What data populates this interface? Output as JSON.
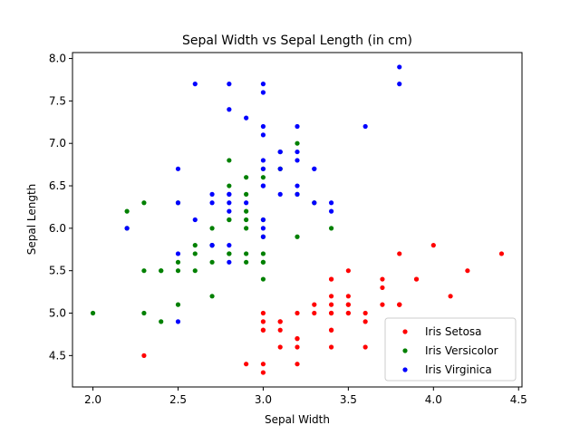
{
  "chart_data": {
    "type": "scatter",
    "title": "Sepal Width vs Sepal Length (in cm)",
    "xlabel": "Sepal Width",
    "ylabel": "Sepal Length",
    "xlim": [
      1.88,
      4.52
    ],
    "ylim": [
      4.13,
      8.07
    ],
    "xticks": [
      "2.0",
      "2.5",
      "3.0",
      "3.5",
      "4.0",
      "4.5"
    ],
    "yticks": [
      "4.5",
      "5.0",
      "5.5",
      "6.0",
      "6.5",
      "7.0",
      "7.5",
      "8.0"
    ],
    "grid": false,
    "legend_position": "lower-right",
    "series": [
      {
        "name": "Iris Setosa",
        "color": "#ff0000",
        "points": [
          [
            3.5,
            5.1
          ],
          [
            3.0,
            4.9
          ],
          [
            3.2,
            4.7
          ],
          [
            3.1,
            4.6
          ],
          [
            3.6,
            5.0
          ],
          [
            3.9,
            5.4
          ],
          [
            3.4,
            4.6
          ],
          [
            3.4,
            5.0
          ],
          [
            2.9,
            4.4
          ],
          [
            3.1,
            4.9
          ],
          [
            3.7,
            5.4
          ],
          [
            3.4,
            4.8
          ],
          [
            3.0,
            4.8
          ],
          [
            3.0,
            4.3
          ],
          [
            4.0,
            5.8
          ],
          [
            4.4,
            5.7
          ],
          [
            3.9,
            5.4
          ],
          [
            3.5,
            5.1
          ],
          [
            3.8,
            5.7
          ],
          [
            3.8,
            5.1
          ],
          [
            3.4,
            5.4
          ],
          [
            3.7,
            5.1
          ],
          [
            3.6,
            4.6
          ],
          [
            3.3,
            5.1
          ],
          [
            3.4,
            4.8
          ],
          [
            3.0,
            5.0
          ],
          [
            3.4,
            5.0
          ],
          [
            3.5,
            5.2
          ],
          [
            3.4,
            5.2
          ],
          [
            3.2,
            4.7
          ],
          [
            3.1,
            4.8
          ],
          [
            3.4,
            5.4
          ],
          [
            4.1,
            5.2
          ],
          [
            4.2,
            5.5
          ],
          [
            3.1,
            4.9
          ],
          [
            3.2,
            5.0
          ],
          [
            3.5,
            5.5
          ],
          [
            3.6,
            4.9
          ],
          [
            3.0,
            4.4
          ],
          [
            3.4,
            5.1
          ],
          [
            3.5,
            5.0
          ],
          [
            2.3,
            4.5
          ],
          [
            3.2,
            4.4
          ],
          [
            3.5,
            5.0
          ],
          [
            3.8,
            5.1
          ],
          [
            3.0,
            4.8
          ],
          [
            3.8,
            5.1
          ],
          [
            3.2,
            4.6
          ],
          [
            3.7,
            5.3
          ],
          [
            3.3,
            5.0
          ]
        ]
      },
      {
        "name": "Iris Versicolor",
        "color": "#008000",
        "points": [
          [
            3.2,
            7.0
          ],
          [
            3.2,
            6.4
          ],
          [
            3.1,
            6.9
          ],
          [
            2.3,
            5.5
          ],
          [
            2.8,
            6.5
          ],
          [
            2.8,
            5.7
          ],
          [
            3.3,
            6.3
          ],
          [
            2.4,
            4.9
          ],
          [
            2.9,
            6.6
          ],
          [
            2.7,
            5.2
          ],
          [
            2.0,
            5.0
          ],
          [
            3.0,
            5.9
          ],
          [
            2.2,
            6.0
          ],
          [
            2.9,
            6.1
          ],
          [
            2.9,
            5.6
          ],
          [
            3.1,
            6.7
          ],
          [
            3.0,
            5.6
          ],
          [
            2.7,
            5.8
          ],
          [
            2.2,
            6.2
          ],
          [
            2.5,
            5.6
          ],
          [
            3.2,
            5.9
          ],
          [
            2.8,
            6.1
          ],
          [
            2.5,
            6.3
          ],
          [
            2.8,
            6.1
          ],
          [
            2.9,
            6.4
          ],
          [
            3.0,
            6.6
          ],
          [
            2.8,
            6.8
          ],
          [
            3.0,
            6.7
          ],
          [
            2.9,
            6.0
          ],
          [
            2.6,
            5.7
          ],
          [
            2.4,
            5.5
          ],
          [
            2.4,
            5.5
          ],
          [
            2.7,
            5.8
          ],
          [
            2.7,
            6.0
          ],
          [
            3.0,
            5.4
          ],
          [
            3.4,
            6.0
          ],
          [
            3.1,
            6.7
          ],
          [
            2.3,
            6.3
          ],
          [
            3.0,
            5.6
          ],
          [
            2.5,
            5.5
          ],
          [
            2.6,
            5.5
          ],
          [
            3.0,
            6.1
          ],
          [
            2.6,
            5.8
          ],
          [
            2.3,
            5.0
          ],
          [
            2.7,
            5.6
          ],
          [
            3.0,
            5.7
          ],
          [
            2.9,
            5.7
          ],
          [
            2.9,
            6.2
          ],
          [
            2.5,
            5.1
          ],
          [
            2.8,
            5.7
          ]
        ]
      },
      {
        "name": "Iris Virginica",
        "color": "#0000ff",
        "points": [
          [
            3.3,
            6.3
          ],
          [
            2.7,
            5.8
          ],
          [
            3.0,
            7.1
          ],
          [
            2.9,
            6.3
          ],
          [
            3.0,
            6.5
          ],
          [
            3.0,
            7.6
          ],
          [
            2.5,
            4.9
          ],
          [
            2.9,
            7.3
          ],
          [
            2.5,
            6.7
          ],
          [
            3.6,
            7.2
          ],
          [
            3.2,
            6.5
          ],
          [
            2.7,
            6.4
          ],
          [
            3.0,
            6.8
          ],
          [
            2.5,
            5.7
          ],
          [
            2.8,
            5.8
          ],
          [
            3.2,
            6.4
          ],
          [
            3.0,
            6.5
          ],
          [
            3.8,
            7.7
          ],
          [
            2.6,
            7.7
          ],
          [
            2.2,
            6.0
          ],
          [
            3.2,
            6.9
          ],
          [
            2.8,
            5.6
          ],
          [
            2.8,
            7.7
          ],
          [
            2.7,
            6.3
          ],
          [
            3.3,
            6.7
          ],
          [
            3.2,
            7.2
          ],
          [
            2.8,
            6.2
          ],
          [
            3.0,
            6.1
          ],
          [
            2.8,
            6.4
          ],
          [
            3.0,
            7.2
          ],
          [
            2.8,
            7.4
          ],
          [
            3.8,
            7.9
          ],
          [
            2.8,
            6.4
          ],
          [
            2.8,
            6.3
          ],
          [
            2.6,
            6.1
          ],
          [
            3.0,
            7.7
          ],
          [
            3.4,
            6.3
          ],
          [
            3.1,
            6.4
          ],
          [
            3.0,
            6.0
          ],
          [
            3.1,
            6.9
          ],
          [
            3.1,
            6.7
          ],
          [
            3.1,
            6.9
          ],
          [
            2.7,
            5.8
          ],
          [
            3.2,
            6.8
          ],
          [
            3.3,
            6.7
          ],
          [
            3.0,
            6.7
          ],
          [
            2.5,
            6.3
          ],
          [
            3.0,
            6.5
          ],
          [
            3.4,
            6.2
          ],
          [
            3.0,
            5.9
          ]
        ]
      }
    ]
  }
}
